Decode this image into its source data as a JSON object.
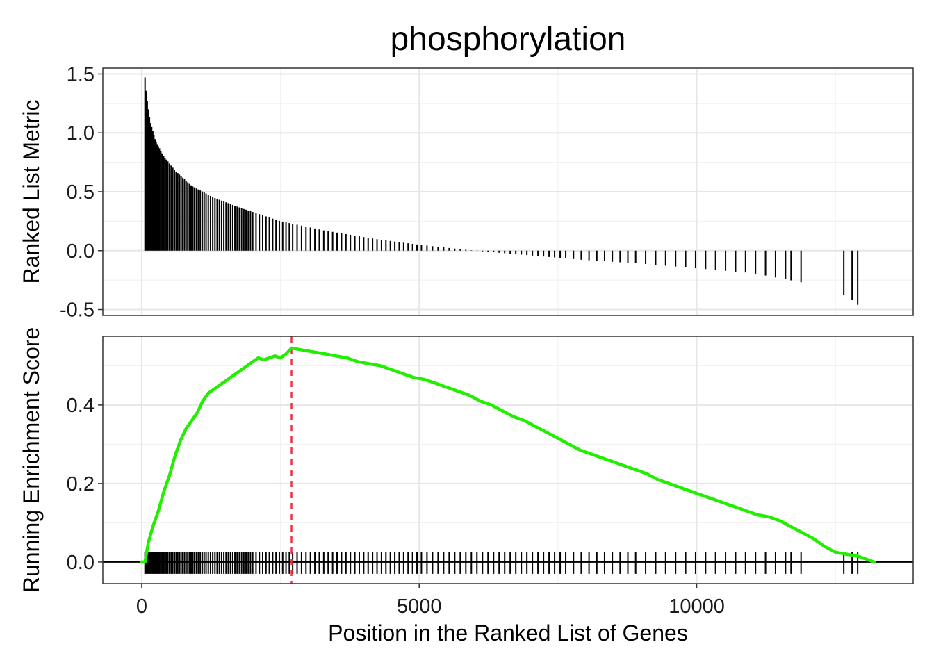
{
  "chart_data": {
    "type": "line",
    "title": "phosphorylation",
    "xlabel": "Position in the Ranked List of Genes",
    "ylabel_top": "Ranked List Metric",
    "ylabel_bottom": "Running Enrichment Score",
    "xlim": [
      -700,
      13900
    ],
    "x_ticks": [
      0,
      5000,
      10000
    ],
    "x_tick_labels": [
      "0",
      "5000",
      "10000"
    ],
    "top_panel": {
      "type": "bar",
      "ylim": [
        -0.55,
        1.55
      ],
      "y_ticks": [
        1.5,
        1.0,
        0.5,
        0.0,
        -0.5
      ],
      "y_tick_labels": [
        "1.5",
        "1.0",
        "0.5",
        "0.0",
        "-0.5"
      ],
      "metric_curve": {
        "x": [
          60,
          90,
          150,
          250,
          400,
          600,
          900,
          1300,
          1800,
          2500,
          3300,
          4200,
          5000,
          6000,
          7000,
          8000,
          9000,
          10000,
          11000,
          11900,
          12700,
          12900
        ],
        "y": [
          1.47,
          1.3,
          1.1,
          0.93,
          0.8,
          0.68,
          0.55,
          0.45,
          0.36,
          0.25,
          0.17,
          0.1,
          0.05,
          0.0,
          -0.04,
          -0.08,
          -0.11,
          -0.15,
          -0.19,
          -0.27,
          -0.38,
          -0.46
        ]
      }
    },
    "bottom_panel": {
      "ylim": [
        -0.055,
        0.575
      ],
      "y_ticks": [
        0.4,
        0.2,
        0.0
      ],
      "y_tick_labels": [
        "0.4",
        "0.2",
        "0.0"
      ],
      "series": [
        {
          "x": [
            0,
            60,
            120,
            200,
            300,
            400,
            500,
            600,
            700,
            800,
            900,
            1000,
            1100,
            1200,
            1300,
            1400,
            1500,
            1600,
            1700,
            1800,
            1900,
            2000,
            2100,
            2200,
            2300,
            2400,
            2500,
            2600,
            2700,
            2900,
            3100,
            3300,
            3500,
            3700,
            3900,
            4100,
            4300,
            4500,
            4700,
            4900,
            5100,
            5300,
            5500,
            5700,
            5900,
            6100,
            6300,
            6500,
            6700,
            6900,
            7100,
            7300,
            7500,
            7700,
            7900,
            8100,
            8300,
            8500,
            8700,
            8900,
            9100,
            9300,
            9500,
            9700,
            9900,
            10100,
            10300,
            10500,
            10700,
            10900,
            11100,
            11300,
            11500,
            11700,
            11900,
            12100,
            12300,
            12500,
            12700,
            12900,
            13200
          ],
          "y": [
            0.0,
            0.0,
            0.05,
            0.09,
            0.13,
            0.18,
            0.22,
            0.27,
            0.31,
            0.34,
            0.36,
            0.38,
            0.41,
            0.43,
            0.44,
            0.45,
            0.46,
            0.47,
            0.48,
            0.49,
            0.5,
            0.51,
            0.52,
            0.515,
            0.52,
            0.525,
            0.52,
            0.53,
            0.545,
            0.54,
            0.535,
            0.53,
            0.525,
            0.52,
            0.51,
            0.505,
            0.5,
            0.49,
            0.48,
            0.47,
            0.465,
            0.455,
            0.445,
            0.435,
            0.425,
            0.41,
            0.4,
            0.385,
            0.37,
            0.36,
            0.345,
            0.33,
            0.315,
            0.3,
            0.285,
            0.275,
            0.265,
            0.255,
            0.245,
            0.235,
            0.225,
            0.21,
            0.2,
            0.19,
            0.18,
            0.17,
            0.16,
            0.15,
            0.14,
            0.13,
            0.12,
            0.115,
            0.105,
            0.09,
            0.075,
            0.06,
            0.04,
            0.025,
            0.02,
            0.015,
            0.0
          ],
          "color": "#22ee00"
        }
      ],
      "max_es_position": 2700,
      "max_es_color": "#ee3344",
      "zero_line": 0.0
    },
    "gene_hits": [
      60,
      80,
      100,
      120,
      140,
      160,
      180,
      200,
      220,
      240,
      260,
      280,
      300,
      320,
      345,
      370,
      395,
      420,
      445,
      470,
      500,
      530,
      560,
      590,
      620,
      650,
      680,
      710,
      740,
      770,
      800,
      830,
      860,
      890,
      920,
      950,
      985,
      1020,
      1055,
      1090,
      1125,
      1160,
      1200,
      1240,
      1280,
      1320,
      1360,
      1400,
      1440,
      1480,
      1520,
      1560,
      1600,
      1640,
      1680,
      1720,
      1760,
      1800,
      1840,
      1880,
      1920,
      1960,
      2000,
      2060,
      2120,
      2180,
      2240,
      2300,
      2360,
      2420,
      2480,
      2540,
      2600,
      2660,
      2720,
      2800,
      2880,
      2960,
      3040,
      3120,
      3200,
      3280,
      3360,
      3440,
      3520,
      3600,
      3680,
      3760,
      3840,
      3920,
      4000,
      4080,
      4160,
      4240,
      4320,
      4400,
      4480,
      4560,
      4640,
      4720,
      4800,
      4880,
      4960,
      5040,
      5140,
      5240,
      5340,
      5440,
      5540,
      5640,
      5740,
      5840,
      5940,
      6040,
      6140,
      6240,
      6340,
      6440,
      6540,
      6640,
      6740,
      6840,
      6940,
      7040,
      7140,
      7240,
      7340,
      7440,
      7540,
      7640,
      7780,
      7920,
      8060,
      8200,
      8340,
      8480,
      8620,
      8760,
      8900,
      9080,
      9260,
      9440,
      9620,
      9800,
      9980,
      10160,
      10340,
      10520,
      10700,
      10880,
      11060,
      11240,
      11420,
      11600,
      11700,
      11880,
      12650,
      12800,
      12900
    ]
  }
}
